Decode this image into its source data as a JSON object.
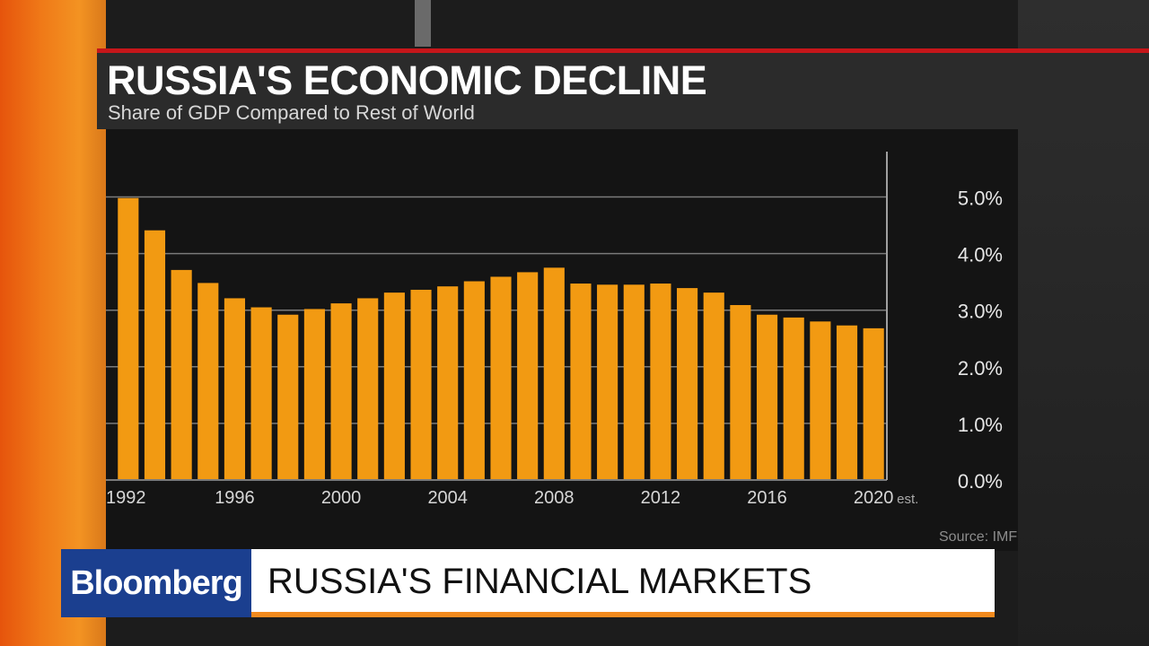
{
  "header": {
    "title": "RUSSIA'S ECONOMIC DECLINE",
    "subtitle": "Share of GDP Compared to Rest of World"
  },
  "source": "Source: IMF",
  "lower_third": {
    "brand": "Bloomberg",
    "headline": "RUSSIA'S FINANCIAL MARKETS"
  },
  "colors": {
    "bar": "#f29a12",
    "grid": "#7a7a7a",
    "brand_blue": "#1b3f8f",
    "accent_orange": "#f28a1e",
    "title_red_rule": "#c6161a"
  },
  "chart_data": {
    "type": "bar",
    "title": "RUSSIA'S ECONOMIC DECLINE",
    "subtitle": "Share of GDP Compared to Rest of World",
    "categories": [
      "1992",
      "1993",
      "1994",
      "1995",
      "1996",
      "1997",
      "1998",
      "1999",
      "2000",
      "2001",
      "2002",
      "2003",
      "2004",
      "2005",
      "2006",
      "2007",
      "2008",
      "2009",
      "2010",
      "2011",
      "2012",
      "2013",
      "2014",
      "2015",
      "2016",
      "2017",
      "2018",
      "2019",
      "2020"
    ],
    "values": [
      4.98,
      4.41,
      3.71,
      3.48,
      3.21,
      3.05,
      2.92,
      3.02,
      3.12,
      3.21,
      3.31,
      3.36,
      3.42,
      3.51,
      3.59,
      3.67,
      3.75,
      3.47,
      3.45,
      3.45,
      3.47,
      3.39,
      3.31,
      3.09,
      2.92,
      2.87,
      2.8,
      2.73,
      2.68
    ],
    "x_tick_labels": [
      "1992",
      "1996",
      "2000",
      "2004",
      "2008",
      "2012",
      "2016",
      "2020"
    ],
    "x_tick_suffix": "est.",
    "y_tick_labels": [
      "0.0%",
      "1.0%",
      "2.0%",
      "3.0%",
      "4.0%",
      "5.0%"
    ],
    "ylim": [
      0,
      5.8
    ],
    "xlabel": "",
    "ylabel": "",
    "grid": true,
    "y_axis_position": "right"
  }
}
